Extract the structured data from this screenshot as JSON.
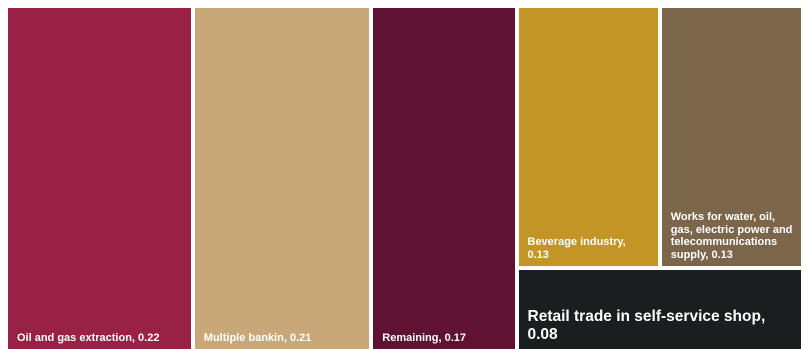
{
  "chart_data": {
    "type": "treemap",
    "title": "",
    "background": "#ffffff",
    "items": [
      {
        "name": "Oil and gas extraction",
        "value": 0.22,
        "label": "Oil and gas extraction, 0.22",
        "color": "#9a2146"
      },
      {
        "name": "Multiple bankin",
        "value": 0.21,
        "label": "Multiple bankin, 0.21",
        "color": "#c8a878"
      },
      {
        "name": "Remaining",
        "value": 0.17,
        "label": "Remaining, 0.17",
        "color": "#601232"
      },
      {
        "name": "Beverage industry",
        "value": 0.13,
        "label": "Beverage industry, 0.13",
        "color": "#c29526"
      },
      {
        "name": "Works for water, oil, gas, electric power and telecommunications supply",
        "value": 0.13,
        "label": "Works for water, oil, gas, electric power and telecommunications supply, 0.13",
        "color": "#7b664b"
      },
      {
        "name": "Retail trade in self-service shop",
        "value": 0.08,
        "label": "Retail trade in self-service shop, 0.08",
        "color": "#1a1e1f"
      }
    ]
  }
}
